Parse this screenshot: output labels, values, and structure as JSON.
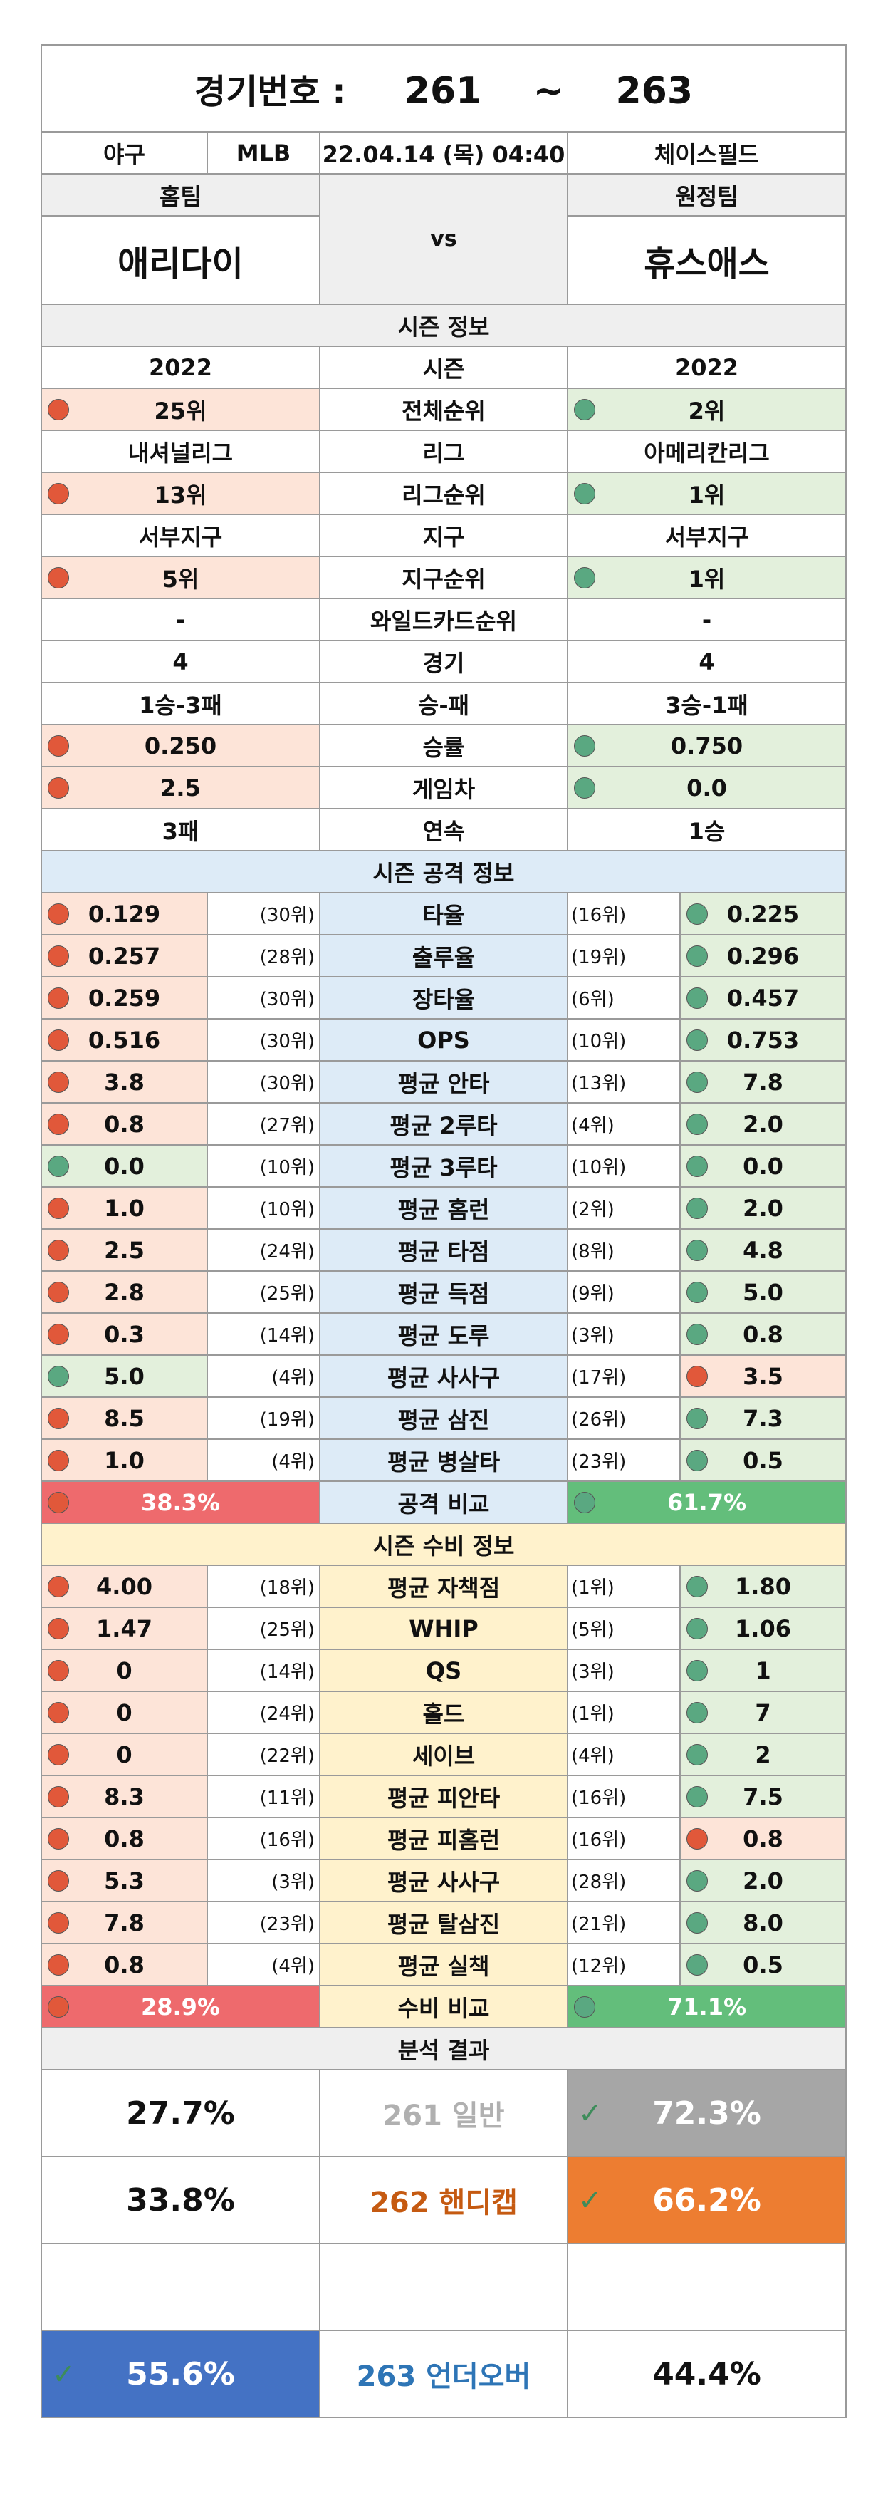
{
  "header": {
    "label": "경기번호 :",
    "start": "261",
    "sep": "~",
    "end": "263",
    "sport": "야구",
    "league": "MLB",
    "datetime": "22.04.14 (목) 04:40",
    "venue": "체이스필드"
  },
  "teams": {
    "home_label": "홈팀",
    "away_label": "원정팀",
    "home": "애리다이",
    "away": "휴스애스",
    "vs": "vs"
  },
  "season": {
    "title": "시즌 정보",
    "rows": [
      {
        "label": "시즌",
        "home": "2022",
        "away": "2022"
      },
      {
        "label": "전체순위",
        "home": "25위",
        "away": "2위"
      },
      {
        "label": "리그",
        "home": "내셔널리그",
        "away": "아메리칸리그"
      },
      {
        "label": "리그순위",
        "home": "13위",
        "away": "1위"
      },
      {
        "label": "지구",
        "home": "서부지구",
        "away": "서부지구"
      },
      {
        "label": "지구순위",
        "home": "5위",
        "away": "1위"
      },
      {
        "label": "와일드카드순위",
        "home": "-",
        "away": "-"
      },
      {
        "label": "경기",
        "home": "4",
        "away": "4"
      },
      {
        "label": "승-패",
        "home": "1승-3패",
        "away": "3승-1패"
      },
      {
        "label": "승률",
        "home": "0.250",
        "away": "0.750"
      },
      {
        "label": "게임차",
        "home": "2.5",
        "away": "0.0"
      },
      {
        "label": "연속",
        "home": "3패",
        "away": "1승"
      }
    ]
  },
  "attack": {
    "title": "시즌 공격 정보",
    "rows": [
      {
        "label": "타율",
        "home": "0.129",
        "home_rank": "(30위)",
        "away": "0.225",
        "away_rank": "(16위)"
      },
      {
        "label": "출루율",
        "home": "0.257",
        "home_rank": "(28위)",
        "away": "0.296",
        "away_rank": "(19위)"
      },
      {
        "label": "장타율",
        "home": "0.259",
        "home_rank": "(30위)",
        "away": "0.457",
        "away_rank": "(6위)"
      },
      {
        "label": "OPS",
        "home": "0.516",
        "home_rank": "(30위)",
        "away": "0.753",
        "away_rank": "(10위)"
      },
      {
        "label": "평균 안타",
        "home": "3.8",
        "home_rank": "(30위)",
        "away": "7.8",
        "away_rank": "(13위)"
      },
      {
        "label": "평균 2루타",
        "home": "0.8",
        "home_rank": "(27위)",
        "away": "2.0",
        "away_rank": "(4위)"
      },
      {
        "label": "평균 3루타",
        "home": "0.0",
        "home_rank": "(10위)",
        "away": "0.0",
        "away_rank": "(10위)"
      },
      {
        "label": "평균 홈런",
        "home": "1.0",
        "home_rank": "(10위)",
        "away": "2.0",
        "away_rank": "(2위)"
      },
      {
        "label": "평균 타점",
        "home": "2.5",
        "home_rank": "(24위)",
        "away": "4.8",
        "away_rank": "(8위)"
      },
      {
        "label": "평균 득점",
        "home": "2.8",
        "home_rank": "(25위)",
        "away": "5.0",
        "away_rank": "(9위)"
      },
      {
        "label": "평균 도루",
        "home": "0.3",
        "home_rank": "(14위)",
        "away": "0.8",
        "away_rank": "(3위)"
      },
      {
        "label": "평균 사사구",
        "home": "5.0",
        "home_rank": "(4위)",
        "away": "3.5",
        "away_rank": "(17위)"
      },
      {
        "label": "평균 삼진",
        "home": "8.5",
        "home_rank": "(19위)",
        "away": "7.3",
        "away_rank": "(26위)"
      },
      {
        "label": "평균 병살타",
        "home": "1.0",
        "home_rank": "(4위)",
        "away": "0.5",
        "away_rank": "(23위)"
      }
    ],
    "compare": {
      "label": "공격 비교",
      "home": "38.3%",
      "away": "61.7%"
    }
  },
  "defense": {
    "title": "시즌 수비 정보",
    "rows": [
      {
        "label": "평균 자책점",
        "home": "4.00",
        "home_rank": "(18위)",
        "away": "1.80",
        "away_rank": "(1위)"
      },
      {
        "label": "WHIP",
        "home": "1.47",
        "home_rank": "(25위)",
        "away": "1.06",
        "away_rank": "(5위)"
      },
      {
        "label": "QS",
        "home": "0",
        "home_rank": "(14위)",
        "away": "1",
        "away_rank": "(3위)"
      },
      {
        "label": "홀드",
        "home": "0",
        "home_rank": "(24위)",
        "away": "7",
        "away_rank": "(1위)"
      },
      {
        "label": "세이브",
        "home": "0",
        "home_rank": "(22위)",
        "away": "2",
        "away_rank": "(4위)"
      },
      {
        "label": "평균 피안타",
        "home": "8.3",
        "home_rank": "(11위)",
        "away": "7.5",
        "away_rank": "(16위)"
      },
      {
        "label": "평균 피홈런",
        "home": "0.8",
        "home_rank": "(16위)",
        "away": "0.8",
        "away_rank": "(16위)"
      },
      {
        "label": "평균 사사구",
        "home": "5.3",
        "home_rank": "(3위)",
        "away": "2.0",
        "away_rank": "(28위)"
      },
      {
        "label": "평균 탈삼진",
        "home": "7.8",
        "home_rank": "(23위)",
        "away": "8.0",
        "away_rank": "(21위)"
      },
      {
        "label": "평균 실책",
        "home": "0.8",
        "home_rank": "(4위)",
        "away": "0.5",
        "away_rank": "(12위)"
      }
    ],
    "compare": {
      "label": "수비 비교",
      "home": "28.9%",
      "away": "71.1%"
    }
  },
  "analysis": {
    "title": "분석 결과",
    "general": {
      "num": "261",
      "label": "일반",
      "home": "27.7%",
      "away": "72.3%"
    },
    "handicap": {
      "num": "262",
      "label": "핸디캡",
      "home": "33.8%",
      "away": "66.2%"
    },
    "underover": {
      "num": "263",
      "label": "언더오버",
      "home": "55.6%",
      "away": "44.4%"
    }
  },
  "colors": {
    "dot_red": "#e1583a",
    "dot_green": "#5aa881",
    "pink": "#fde4d8",
    "green": "#e3f0dc",
    "blue": "#ddebf7",
    "yellow": "#fff2cc",
    "compare_red": "#ee6a6d",
    "compare_green": "#63be7b",
    "result_gray": "#a6a6a6",
    "result_orange": "#ed7d31",
    "result_blue": "#4472c4"
  }
}
